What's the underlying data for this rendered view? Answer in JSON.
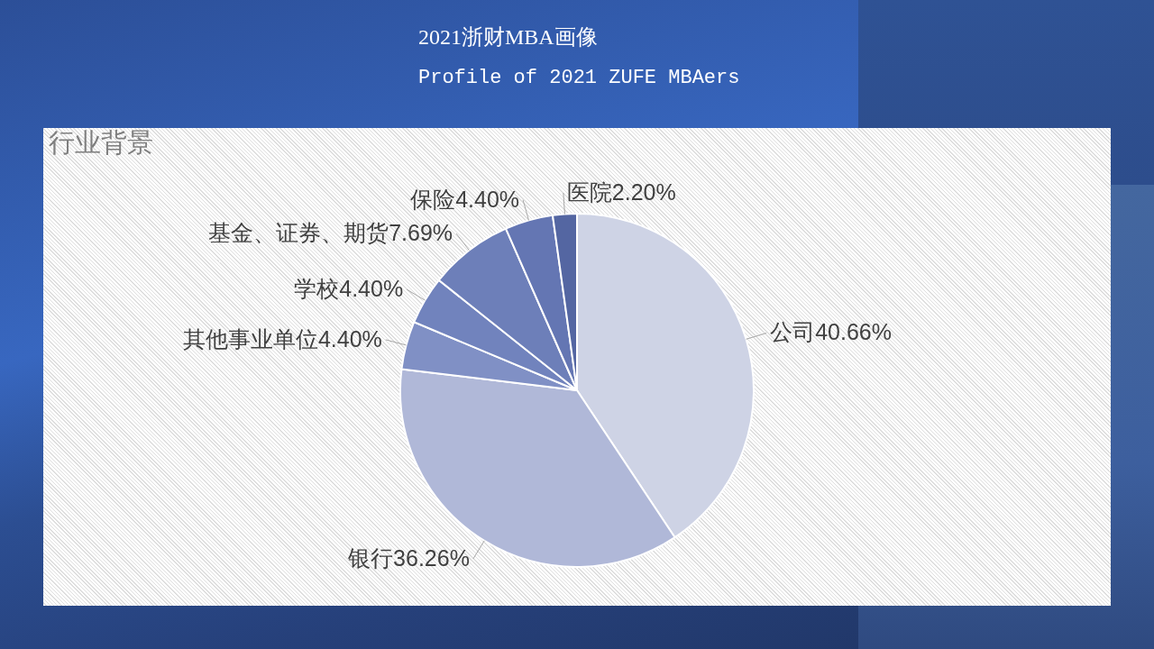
{
  "chart_data": {
    "type": "pie",
    "title": "行业背景",
    "annotations": [
      "2021浙财MBA画像",
      "Profile of 2021 ZUFE MBAers"
    ],
    "categories": [
      "公司",
      "银行",
      "其他事业单位",
      "学校",
      "基金、证券、期货",
      "保险",
      "医院"
    ],
    "values": [
      40.66,
      36.26,
      4.4,
      4.4,
      7.69,
      4.4,
      2.2
    ],
    "value_labels": [
      "40.66%",
      "36.26%",
      "4.40%",
      "4.40%",
      "7.69%",
      "4.40%",
      "2.20%"
    ],
    "colors": [
      "#ced3e5",
      "#b0b8d8",
      "#8090c5",
      "#7183bd",
      "#6d7fb9",
      "#6476b3",
      "#5466a2"
    ]
  }
}
